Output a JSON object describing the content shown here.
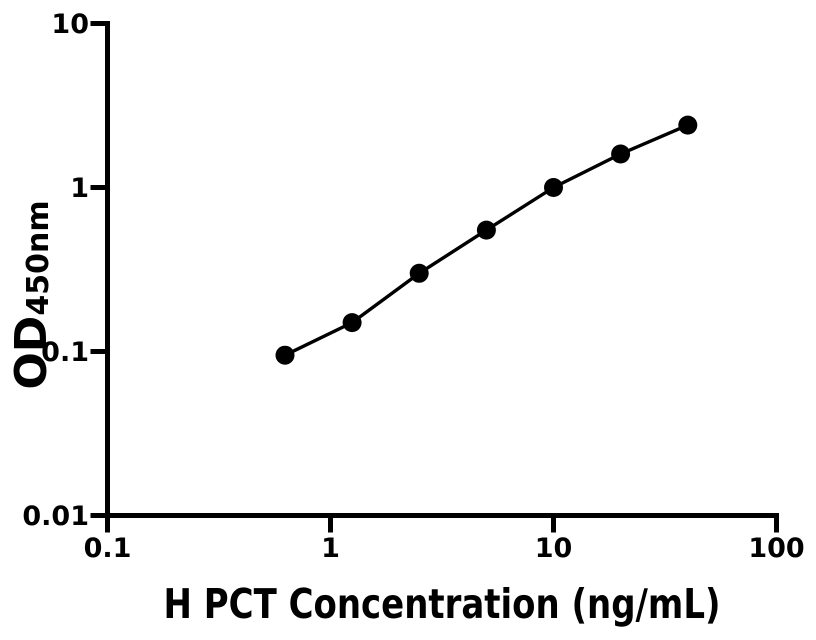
{
  "figure": {
    "background_color": "#ffffff",
    "axis_color": "#000000"
  },
  "chart_data": {
    "type": "scatter",
    "title": "",
    "xlabel": "H PCT Concentration (ng/mL)",
    "ylabel_main": "OD",
    "ylabel_sub": "450nm",
    "x_scale": "log",
    "y_scale": "log",
    "xlim": [
      0.1,
      100
    ],
    "ylim": [
      0.01,
      10
    ],
    "x_ticks": [
      0.1,
      1,
      10,
      100
    ],
    "x_tick_labels": [
      "0.1",
      "1",
      "10",
      "100"
    ],
    "y_ticks": [
      0.01,
      0.1,
      1,
      10
    ],
    "y_tick_labels": [
      "0.01",
      "0.1",
      "1",
      "10"
    ],
    "points": [
      {
        "x": 0.625,
        "y": 0.095
      },
      {
        "x": 1.25,
        "y": 0.15
      },
      {
        "x": 2.5,
        "y": 0.3
      },
      {
        "x": 5,
        "y": 0.55
      },
      {
        "x": 10,
        "y": 1.0
      },
      {
        "x": 20,
        "y": 1.6
      },
      {
        "x": 40,
        "y": 2.4
      }
    ],
    "marker_color": "#000000",
    "line_color": "#000000",
    "grid": false,
    "legend": "none"
  }
}
